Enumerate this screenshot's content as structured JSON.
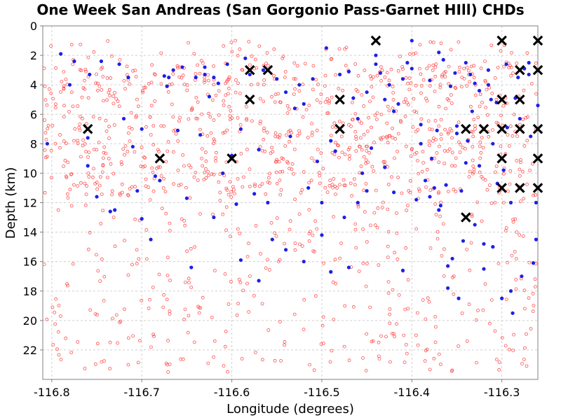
{
  "chart_data": {
    "type": "scatter",
    "title": "One Week San Andreas (San Gorgonio Pass-Garnet HIll) CHDs",
    "xlabel": "Longitude (degrees)",
    "ylabel": "Depth (km)",
    "xlim": [
      -116.81,
      -116.26
    ],
    "ylim": [
      0,
      24
    ],
    "y_inverted": true,
    "grid": true,
    "x_ticks": [
      -116.8,
      -116.7,
      -116.6,
      -116.5,
      -116.4,
      -116.3
    ],
    "x_tick_labels": [
      "-116.8",
      "-116.7",
      "-116.6",
      "-116.5",
      "-116.4",
      "-116.3"
    ],
    "y_ticks": [
      0,
      2,
      4,
      6,
      8,
      10,
      12,
      14,
      16,
      18,
      20,
      22
    ],
    "y_tick_labels": [
      "0",
      "2",
      "4",
      "6",
      "8",
      "10",
      "12",
      "14",
      "16",
      "18",
      "20",
      "22"
    ],
    "series": [
      {
        "marker": "open-circle",
        "color": "#ff4d4d",
        "density_note_count": 1300,
        "points": []
      },
      {
        "marker": "filled-circle",
        "color": "#1f1fe6",
        "points": [
          [
            -116.805,
            8.0
          ],
          [
            -116.79,
            1.9
          ],
          [
            -116.775,
            2.4
          ],
          [
            -116.76,
            7.6
          ],
          [
            -116.758,
            3.3
          ],
          [
            -116.75,
            11.6
          ],
          [
            -116.745,
            2.4
          ],
          [
            -116.735,
            12.6
          ],
          [
            -116.725,
            2.6
          ],
          [
            -116.715,
            3.5
          ],
          [
            -116.72,
            6.3
          ],
          [
            -116.71,
            8.2
          ],
          [
            -116.705,
            11.2
          ],
          [
            -116.7,
            7.0
          ],
          [
            -116.69,
            14.5
          ],
          [
            -116.685,
            10.2
          ],
          [
            -116.68,
            10.5
          ],
          [
            -116.675,
            3.4
          ],
          [
            -116.672,
            4.1
          ],
          [
            -116.665,
            3.0
          ],
          [
            -116.66,
            7.1
          ],
          [
            -116.655,
            2.8
          ],
          [
            -116.65,
            11.7
          ],
          [
            -116.645,
            16.4
          ],
          [
            -116.64,
            3.5
          ],
          [
            -116.635,
            7.4
          ],
          [
            -116.63,
            2.8
          ],
          [
            -116.625,
            4.8
          ],
          [
            -116.62,
            3.5
          ],
          [
            -116.615,
            3.9
          ],
          [
            -116.61,
            10.0
          ],
          [
            -116.605,
            2.6
          ],
          [
            -116.6,
            8.8
          ],
          [
            -116.595,
            12.1
          ],
          [
            -116.59,
            7.0
          ],
          [
            -116.585,
            2.2
          ],
          [
            -116.58,
            3.3
          ],
          [
            -116.575,
            11.4
          ],
          [
            -116.57,
            8.4
          ],
          [
            -116.565,
            3.0
          ],
          [
            -116.56,
            12.0
          ],
          [
            -116.555,
            14.5
          ],
          [
            -116.55,
            3.6
          ],
          [
            -116.54,
            4.5
          ],
          [
            -116.535,
            7.5
          ],
          [
            -116.53,
            5.6
          ],
          [
            -116.525,
            4.0
          ],
          [
            -116.52,
            5.3
          ],
          [
            -116.515,
            11.0
          ],
          [
            -116.51,
            3.6
          ],
          [
            -116.505,
            9.2
          ],
          [
            -116.5,
            14.2
          ],
          [
            -116.495,
            1.5
          ],
          [
            -116.49,
            7.8
          ],
          [
            -116.485,
            8.5
          ],
          [
            -116.48,
            3.3
          ],
          [
            -116.475,
            13.0
          ],
          [
            -116.47,
            3.1
          ],
          [
            -116.465,
            4.9
          ],
          [
            -116.46,
            12.0
          ],
          [
            -116.455,
            10.0
          ],
          [
            -116.45,
            11.2
          ],
          [
            -116.445,
            8.3
          ],
          [
            -116.44,
            2.6
          ],
          [
            -116.435,
            3.2
          ],
          [
            -116.43,
            5.0
          ],
          [
            -116.425,
            4.0
          ],
          [
            -116.42,
            5.8
          ],
          [
            -116.415,
            5.3
          ],
          [
            -116.41,
            3.6
          ],
          [
            -116.405,
            2.5
          ],
          [
            -116.4,
            1.0
          ],
          [
            -116.395,
            11.8
          ],
          [
            -116.39,
            8.0
          ],
          [
            -116.385,
            10.5
          ],
          [
            -116.38,
            3.7
          ],
          [
            -116.375,
            11.0
          ],
          [
            -116.37,
            1.8
          ],
          [
            -116.365,
            2.3
          ],
          [
            -116.36,
            17.8
          ],
          [
            -116.355,
            15.8
          ],
          [
            -116.35,
            6.8
          ],
          [
            -116.345,
            11.2
          ],
          [
            -116.34,
            2.5
          ],
          [
            -116.335,
            3.3
          ],
          [
            -116.33,
            13.5
          ],
          [
            -116.325,
            9.5
          ],
          [
            -116.32,
            14.8
          ],
          [
            -116.315,
            3.0
          ],
          [
            -116.312,
            5.0
          ],
          [
            -116.31,
            8.0
          ],
          [
            -116.305,
            10.7
          ],
          [
            -116.3,
            11.0
          ],
          [
            -116.295,
            2.6
          ],
          [
            -116.29,
            12.0
          ],
          [
            -116.285,
            4.9
          ],
          [
            -116.28,
            6.3
          ],
          [
            -116.278,
            17.0
          ],
          [
            -116.275,
            2.9
          ],
          [
            -116.27,
            3.3
          ],
          [
            -116.268,
            7.5
          ],
          [
            -116.265,
            16.1
          ],
          [
            -116.262,
            12.0
          ],
          [
            -116.26,
            5.4
          ],
          [
            -116.262,
            14.5
          ],
          [
            -116.27,
            2.5
          ],
          [
            -116.29,
            18.0
          ],
          [
            -116.3,
            18.5
          ],
          [
            -116.31,
            15.0
          ],
          [
            -116.32,
            16.5
          ],
          [
            -116.33,
            3.9
          ],
          [
            -116.34,
            9.3
          ],
          [
            -116.35,
            7.3
          ],
          [
            -116.36,
            16.3
          ],
          [
            -116.37,
            12.5
          ],
          [
            -116.38,
            11.6
          ],
          [
            -116.39,
            6.7
          ],
          [
            -116.4,
            2.9
          ],
          [
            -116.41,
            16.6
          ],
          [
            -116.42,
            11.3
          ],
          [
            -116.43,
            9.6
          ],
          [
            -116.44,
            2.0
          ],
          [
            -116.45,
            4.5
          ],
          [
            -116.46,
            6.3
          ],
          [
            -116.47,
            16.4
          ],
          [
            -116.48,
            7.0
          ],
          [
            -116.49,
            16.7
          ],
          [
            -116.5,
            12.0
          ],
          [
            -116.52,
            16.0
          ],
          [
            -116.54,
            15.2
          ],
          [
            -116.57,
            17.3
          ],
          [
            -116.59,
            15.9
          ],
          [
            -116.62,
            13.0
          ],
          [
            -116.63,
            3.3
          ],
          [
            -116.67,
            3.5
          ],
          [
            -116.7,
            13.1
          ],
          [
            -116.73,
            12.5
          ],
          [
            -116.76,
            9.5
          ],
          [
            -116.78,
            4.0
          ],
          [
            -116.288,
            19.5
          ],
          [
            -116.282,
            3.5
          ],
          [
            -116.294,
            6.9
          ],
          [
            -116.298,
            9.8
          ],
          [
            -116.306,
            5.2
          ],
          [
            -116.315,
            4.0
          ],
          [
            -116.325,
            4.4
          ],
          [
            -116.333,
            5.8
          ],
          [
            -116.338,
            7.8
          ],
          [
            -116.343,
            14.6
          ],
          [
            -116.348,
            18.5
          ],
          [
            -116.352,
            3.2
          ],
          [
            -116.357,
            4.1
          ],
          [
            -116.362,
            10.8
          ],
          [
            -116.368,
            12.2
          ],
          [
            -116.372,
            7.1
          ],
          [
            -116.378,
            9.0
          ]
        ]
      },
      {
        "marker": "x",
        "color": "#000000",
        "points": [
          [
            -116.76,
            7
          ],
          [
            -116.68,
            9
          ],
          [
            -116.6,
            9
          ],
          [
            -116.58,
            3
          ],
          [
            -116.58,
            5
          ],
          [
            -116.56,
            3
          ],
          [
            -116.48,
            5
          ],
          [
            -116.48,
            7
          ],
          [
            -116.44,
            1
          ],
          [
            -116.34,
            7
          ],
          [
            -116.34,
            13
          ],
          [
            -116.32,
            7
          ],
          [
            -116.3,
            1
          ],
          [
            -116.3,
            5
          ],
          [
            -116.3,
            7
          ],
          [
            -116.3,
            9
          ],
          [
            -116.3,
            11
          ],
          [
            -116.28,
            3
          ],
          [
            -116.28,
            5
          ],
          [
            -116.28,
            7
          ],
          [
            -116.28,
            11
          ],
          [
            -116.26,
            1
          ],
          [
            -116.26,
            3
          ],
          [
            -116.26,
            7
          ],
          [
            -116.26,
            9
          ],
          [
            -116.26,
            11
          ]
        ]
      }
    ]
  }
}
